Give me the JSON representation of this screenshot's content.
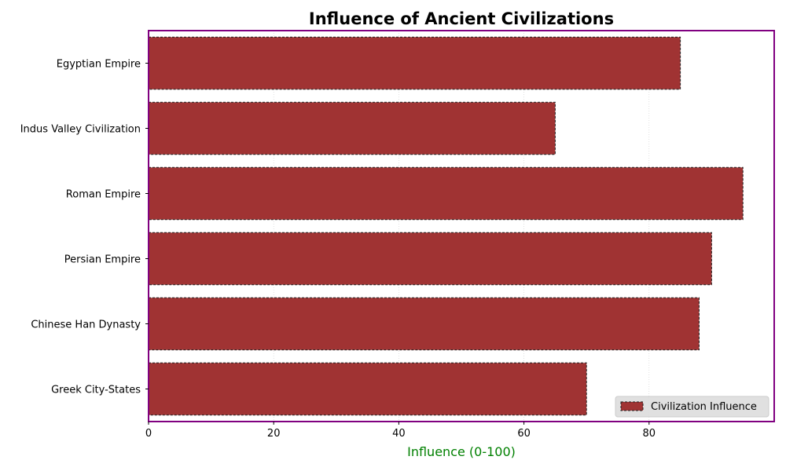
{
  "chart_data": {
    "type": "bar",
    "orientation": "horizontal",
    "title": "Influence of Ancient Civilizations",
    "xlabel": "Influence (0-100)",
    "ylabel": "",
    "categories": [
      "Egyptian Empire",
      "Indus Valley Civilization",
      "Roman Empire",
      "Persian Empire",
      "Chinese Han Dynasty",
      "Greek City-States"
    ],
    "values": [
      85,
      65,
      95,
      90,
      88,
      70
    ],
    "series_name": "Civilization Influence",
    "xlim": [
      0,
      100
    ],
    "xticks": [
      0,
      20,
      40,
      60,
      80
    ],
    "grid": "vertical dotted",
    "legend_position": "lower-right"
  },
  "colors": {
    "bar": "#a03333",
    "bar_edge": "#222222",
    "frame": "#800080",
    "xlabel": "#008000",
    "grid": "#cccccc"
  }
}
